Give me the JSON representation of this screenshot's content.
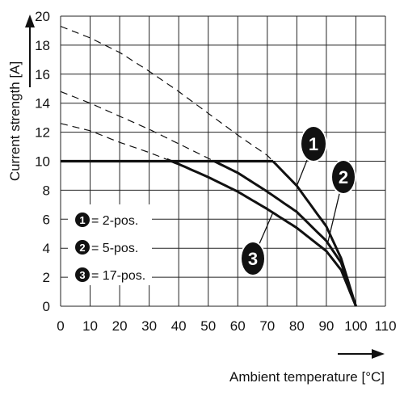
{
  "chart_data": {
    "type": "line",
    "xlabel": "Ambient temperature [°C]",
    "ylabel": "Current strength [A]",
    "xlim": [
      0,
      110
    ],
    "ylim": [
      0,
      20
    ],
    "x_ticks": [
      0,
      10,
      20,
      30,
      40,
      50,
      60,
      70,
      80,
      90,
      100,
      110
    ],
    "y_ticks": [
      0,
      2,
      4,
      6,
      8,
      10,
      12,
      14,
      16,
      18,
      20
    ],
    "grid": true,
    "legend": {
      "position": "bottom-left",
      "entries": [
        {
          "marker": "1",
          "text": "= 2-pos."
        },
        {
          "marker": "2",
          "text": "= 5-pos."
        },
        {
          "marker": "3",
          "text": "= 17-pos."
        }
      ]
    },
    "cap_line": {
      "y": 10,
      "x": [
        0,
        72
      ]
    },
    "series": [
      {
        "marker": "1",
        "x": [
          0,
          10,
          20,
          30,
          40,
          50,
          60,
          70,
          80,
          90,
          95,
          100
        ],
        "y": [
          19.3,
          18.5,
          17.5,
          16.2,
          14.8,
          13.3,
          11.8,
          10.4,
          8.3,
          5.5,
          3.3,
          0
        ],
        "derating_from_x": 72
      },
      {
        "marker": "2",
        "x": [
          0,
          10,
          20,
          30,
          40,
          50,
          60,
          70,
          80,
          90,
          95,
          100
        ],
        "y": [
          14.8,
          14.0,
          13.1,
          12.2,
          11.2,
          10.2,
          9.2,
          7.9,
          6.5,
          4.5,
          3.0,
          0
        ],
        "derating_from_x": 52
      },
      {
        "marker": "3",
        "x": [
          0,
          10,
          20,
          30,
          40,
          50,
          60,
          70,
          80,
          90,
          95,
          100
        ],
        "y": [
          12.6,
          12.1,
          11.3,
          10.6,
          9.8,
          8.9,
          7.9,
          6.7,
          5.4,
          3.8,
          2.5,
          0
        ],
        "derating_from_x": 36
      }
    ]
  }
}
